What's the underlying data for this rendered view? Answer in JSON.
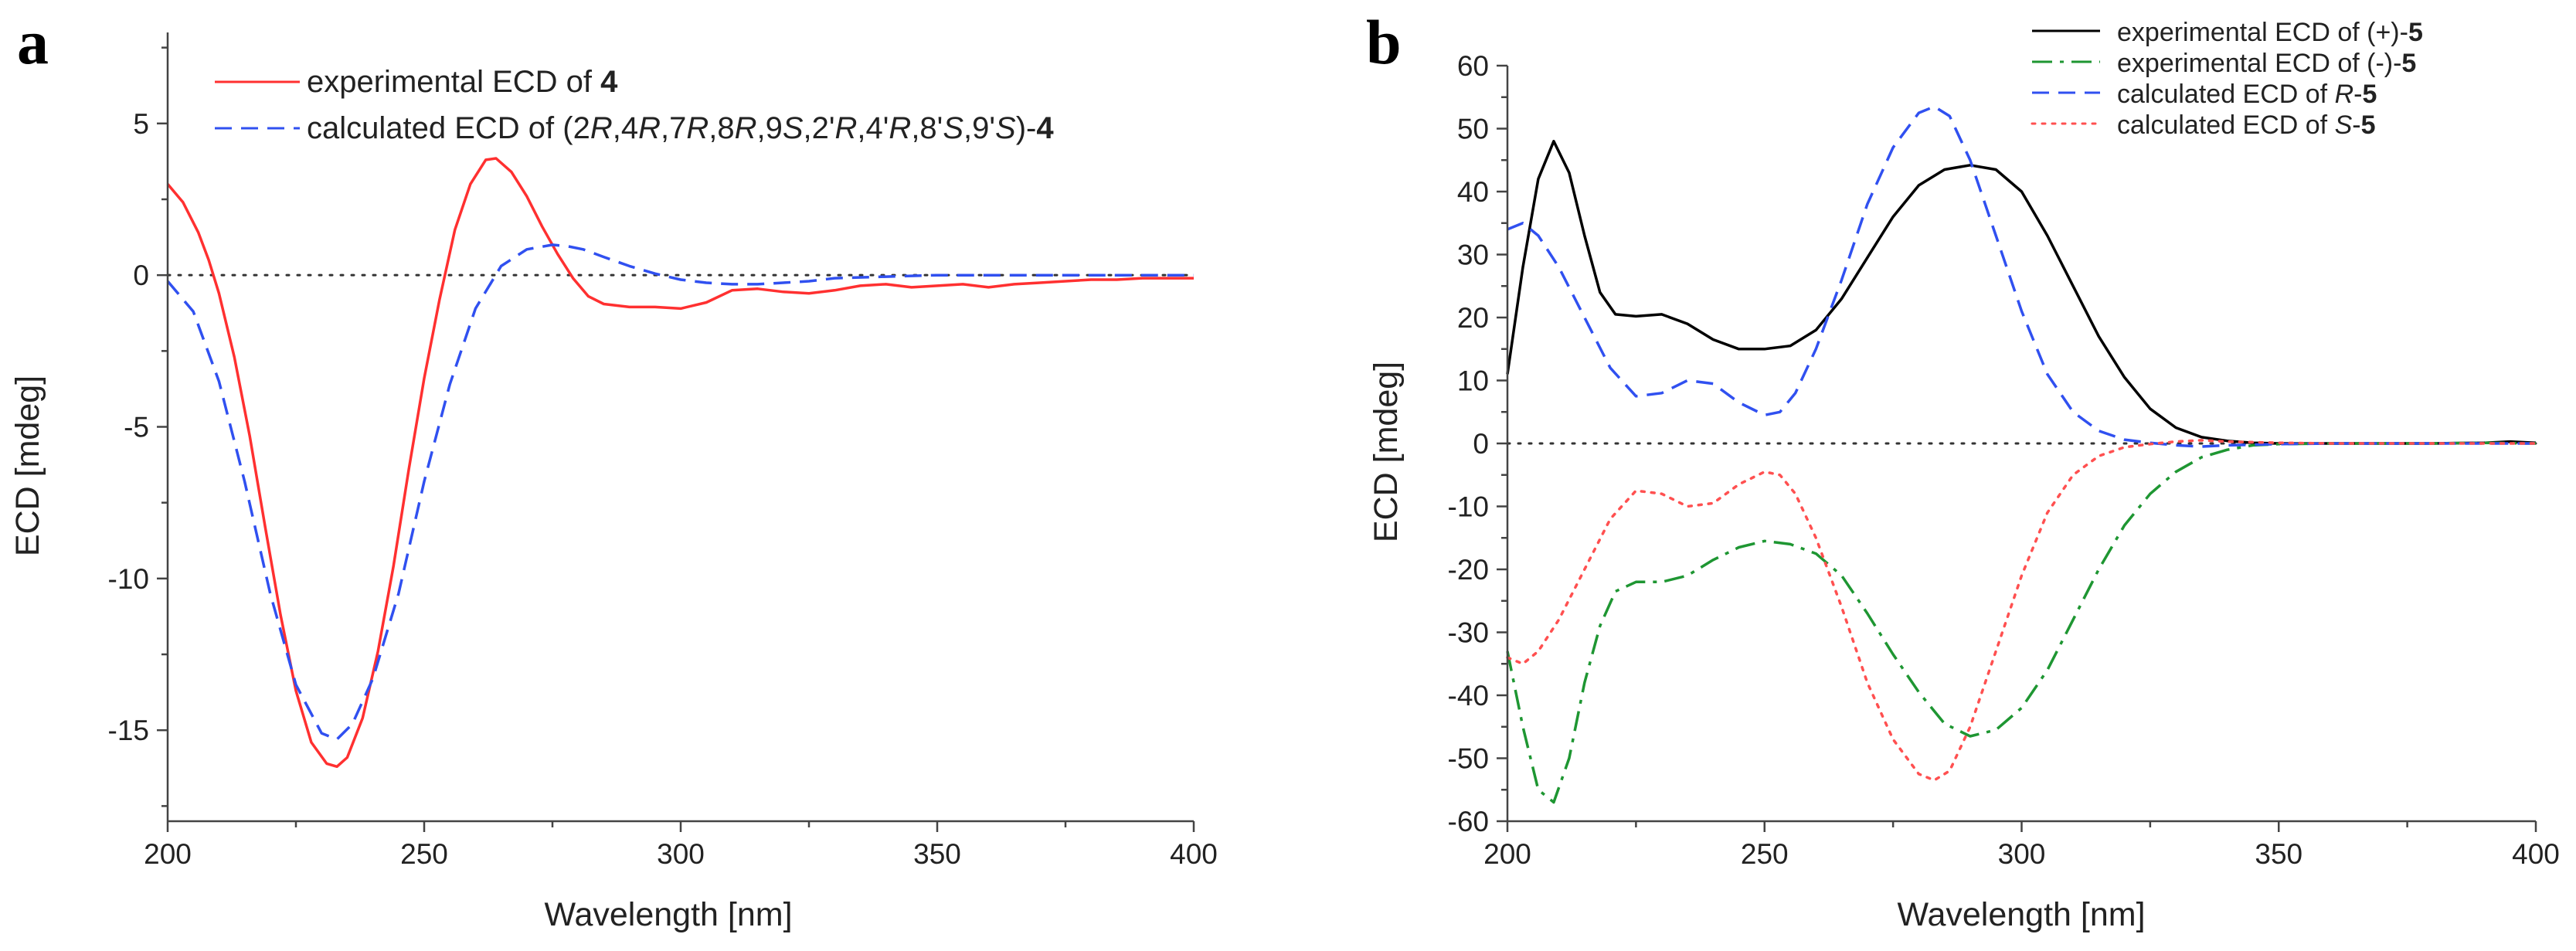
{
  "chart_data": [
    {
      "panel": "a",
      "type": "line",
      "xlabel": "Wavelength [nm]",
      "ylabel": "ECD [mdeg]",
      "xlim": [
        200,
        400
      ],
      "ylim": [
        -18,
        8
      ],
      "xticks": [
        200,
        250,
        300,
        350,
        400
      ],
      "yticks": [
        5,
        0,
        -5,
        -10,
        -15
      ],
      "zero_line": "dotted",
      "legend_position": "top",
      "series": [
        {
          "name": "experimental ECD of 4",
          "legend": [
            "experimental ECD of ",
            "4"
          ],
          "color": "#ff3030",
          "dash": "solid",
          "x": [
            200,
            203,
            206,
            208,
            210,
            213,
            216,
            219,
            222,
            225,
            228,
            231,
            233,
            235,
            238,
            241,
            244,
            247,
            250,
            253,
            256,
            259,
            262,
            264,
            267,
            270,
            273,
            276,
            279,
            282,
            285,
            290,
            295,
            300,
            305,
            310,
            315,
            320,
            325,
            330,
            335,
            340,
            345,
            350,
            355,
            360,
            365,
            370,
            375,
            380,
            385,
            390,
            395,
            400
          ],
          "y": [
            3.0,
            2.4,
            1.4,
            0.5,
            -0.6,
            -2.7,
            -5.3,
            -8.3,
            -11.2,
            -13.7,
            -15.4,
            -16.1,
            -16.2,
            -15.9,
            -14.6,
            -12.4,
            -9.6,
            -6.4,
            -3.4,
            -0.8,
            1.5,
            3.0,
            3.8,
            3.85,
            3.4,
            2.6,
            1.6,
            0.7,
            -0.1,
            -0.7,
            -0.95,
            -1.05,
            -1.05,
            -1.1,
            -0.9,
            -0.5,
            -0.45,
            -0.55,
            -0.6,
            -0.5,
            -0.35,
            -0.3,
            -0.4,
            -0.35,
            -0.3,
            -0.4,
            -0.3,
            -0.25,
            -0.2,
            -0.15,
            -0.15,
            -0.1,
            -0.1,
            -0.1
          ]
        },
        {
          "name": "calculated ECD of (2R,4R,7R,8R,9S,2'R,4'R,8'S,9'S)-4",
          "legend": [
            "calculated ECD of (2",
            "R",
            ",4",
            "R",
            ",7",
            "R",
            ",8",
            "R",
            ",9",
            "S",
            ",2'",
            "R",
            ",4'",
            "R",
            ",8'",
            "S",
            ",9'",
            "S",
            ")-",
            "4"
          ],
          "color": "#3050f0",
          "dash": "dashed",
          "x": [
            200,
            205,
            210,
            215,
            220,
            225,
            230,
            233,
            236,
            240,
            245,
            250,
            255,
            260,
            265,
            270,
            275,
            278,
            281,
            285,
            290,
            295,
            300,
            305,
            310,
            315,
            320,
            325,
            330,
            340,
            350,
            360,
            370,
            380,
            390,
            400
          ],
          "y": [
            -0.2,
            -1.2,
            -3.5,
            -6.8,
            -10.5,
            -13.5,
            -15.1,
            -15.3,
            -14.8,
            -13.3,
            -10.5,
            -6.8,
            -3.6,
            -1.1,
            0.3,
            0.85,
            1.0,
            0.95,
            0.85,
            0.6,
            0.3,
            0.05,
            -0.15,
            -0.25,
            -0.3,
            -0.3,
            -0.25,
            -0.2,
            -0.1,
            -0.05,
            0.0,
            0.0,
            0.0,
            0.0,
            0.0,
            0.0
          ]
        }
      ]
    },
    {
      "panel": "b",
      "type": "line",
      "xlabel": "Wavelength [nm]",
      "ylabel": "ECD [mdeg]",
      "xlim": [
        200,
        400
      ],
      "ylim": [
        -60,
        60
      ],
      "xticks": [
        200,
        250,
        300,
        350,
        400
      ],
      "yticks": [
        60,
        50,
        40,
        30,
        20,
        10,
        0,
        -10,
        -20,
        -30,
        -40,
        -50,
        -60
      ],
      "zero_line": "dotted",
      "legend_position": "top-right",
      "series": [
        {
          "name": "experimental ECD of (+)-5",
          "legend": [
            "experimental ECD of (+)-",
            "5"
          ],
          "color": "#000000",
          "dash": "solid",
          "x": [
            200,
            203,
            206,
            209,
            212,
            215,
            218,
            221,
            225,
            230,
            235,
            240,
            245,
            250,
            255,
            260,
            265,
            270,
            275,
            280,
            285,
            290,
            295,
            300,
            305,
            310,
            315,
            320,
            325,
            330,
            335,
            340,
            345,
            350,
            360,
            370,
            380,
            390,
            395,
            400
          ],
          "y": [
            11,
            28,
            42,
            48,
            43,
            33,
            24,
            20.5,
            20.2,
            20.5,
            19,
            16.5,
            15,
            15,
            15.5,
            18,
            23,
            29.5,
            36,
            41,
            43.5,
            44.2,
            43.5,
            40,
            33,
            25,
            17,
            10.5,
            5.5,
            2.5,
            1.0,
            0.4,
            0.1,
            0.0,
            0.0,
            0.0,
            0.0,
            0.1,
            0.3,
            0.1
          ]
        },
        {
          "name": "experimental ECD of (-)-5",
          "legend": [
            "experimental ECD of (-)-",
            "5"
          ],
          "color": "#1e9632",
          "dash": "dashdot",
          "x": [
            200,
            203,
            206,
            209,
            212,
            215,
            218,
            221,
            225,
            230,
            235,
            240,
            245,
            250,
            255,
            260,
            265,
            270,
            275,
            280,
            285,
            290,
            295,
            300,
            305,
            310,
            315,
            320,
            325,
            330,
            335,
            340,
            345,
            350,
            360,
            370,
            380,
            390,
            400
          ],
          "y": [
            -33,
            -45,
            -55,
            -57,
            -50,
            -38,
            -29,
            -23.5,
            -22,
            -22,
            -21,
            -18.5,
            -16.5,
            -15.5,
            -16,
            -17.5,
            -21,
            -27,
            -33.5,
            -39.5,
            -44.5,
            -46.5,
            -45.5,
            -42,
            -36,
            -28,
            -20,
            -13,
            -8,
            -4.5,
            -2.2,
            -1,
            -0.3,
            -0.1,
            0.0,
            0.0,
            0.0,
            0.1,
            0.0
          ]
        },
        {
          "name": "calculated ECD of R-5",
          "legend": [
            "calculated ECD of ",
            "R",
            "-",
            "5"
          ],
          "color": "#3050f0",
          "dash": "dashed",
          "x": [
            200,
            203,
            206,
            210,
            215,
            220,
            225,
            230,
            235,
            240,
            245,
            250,
            253,
            256,
            260,
            265,
            270,
            275,
            280,
            283,
            286,
            290,
            295,
            300,
            305,
            310,
            315,
            320,
            325,
            330,
            335,
            340,
            350,
            360,
            370,
            380,
            390,
            400
          ],
          "y": [
            34,
            35,
            33,
            28,
            20,
            12,
            7.5,
            8,
            10,
            9.5,
            6.5,
            4.5,
            5,
            8,
            15,
            26,
            38,
            47,
            52.5,
            53.5,
            52,
            45,
            33,
            21,
            11,
            5,
            2,
            0.6,
            0.1,
            -0.3,
            -0.5,
            -0.3,
            -0.1,
            0.0,
            0.0,
            0.0,
            0.0,
            0.0
          ]
        },
        {
          "name": "calculated ECD of S-5",
          "legend": [
            "calculated ECD of ",
            "S",
            "-",
            "5"
          ],
          "color": "#ff5050",
          "dash": "dotted",
          "x": [
            200,
            203,
            206,
            210,
            215,
            220,
            225,
            230,
            235,
            240,
            245,
            250,
            253,
            256,
            260,
            265,
            270,
            275,
            280,
            283,
            286,
            290,
            295,
            300,
            305,
            310,
            315,
            320,
            325,
            330,
            335,
            340,
            350,
            360,
            370,
            380,
            390,
            400
          ],
          "y": [
            -34,
            -35,
            -33,
            -28,
            -20,
            -12,
            -7.5,
            -8,
            -10,
            -9.5,
            -6.5,
            -4.5,
            -5,
            -8,
            -15,
            -26,
            -38,
            -47,
            -52.5,
            -53.5,
            -52,
            -45,
            -33,
            -21,
            -11,
            -5,
            -2,
            -0.6,
            -0.1,
            0.3,
            0.5,
            0.3,
            0.1,
            0.0,
            0.0,
            0.0,
            0.0,
            0.0
          ]
        }
      ]
    }
  ]
}
